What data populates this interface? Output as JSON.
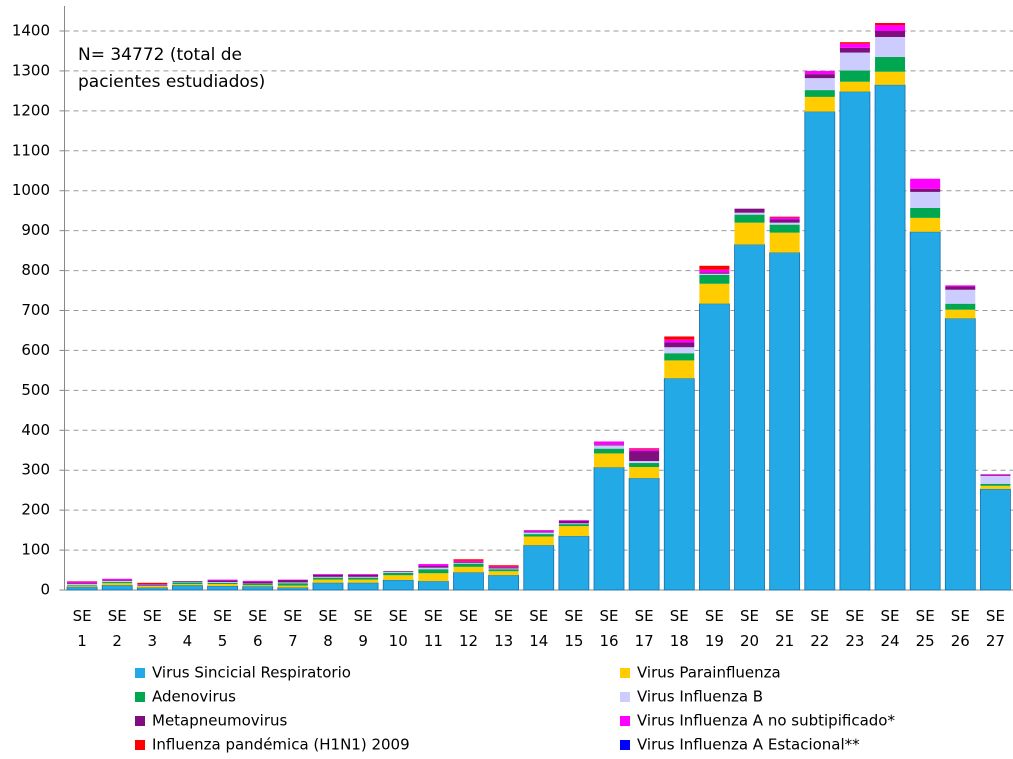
{
  "chart_data": {
    "type": "stacked-bar",
    "annotation": "N= 34772 (total de pacientes estudiados)",
    "categories": [
      "SE 1",
      "SE 2",
      "SE 3",
      "SE 4",
      "SE 5",
      "SE 6",
      "SE 7",
      "SE 8",
      "SE 9",
      "SE 10",
      "SE 11",
      "SE 12",
      "SE 13",
      "SE 14",
      "SE 15",
      "SE 16",
      "SE 17",
      "SE 18",
      "SE 19",
      "SE 20",
      "SE 21",
      "SE 22",
      "SE 23",
      "SE 24",
      "SE 25",
      "SE 26",
      "SE 27"
    ],
    "series": [
      {
        "name": "Virus Sincicial Respiratorio",
        "color": "#22a9e6",
        "values": [
          8,
          12,
          6,
          12,
          10,
          9,
          6,
          18,
          18,
          25,
          22,
          44,
          37,
          112,
          135,
          307,
          280,
          530,
          717,
          865,
          845,
          1198,
          1248,
          1265,
          897,
          680,
          253
        ]
      },
      {
        "name": "Virus Parainfluenza",
        "color": "#ffcc00",
        "values": [
          3,
          5,
          4,
          3,
          5,
          3,
          5,
          8,
          8,
          12,
          20,
          14,
          10,
          22,
          25,
          35,
          28,
          45,
          50,
          55,
          50,
          37,
          25,
          33,
          35,
          22,
          8
        ]
      },
      {
        "name": "Adenovirus",
        "color": "#00a650",
        "values": [
          2,
          3,
          2,
          4,
          3,
          3,
          6,
          5,
          5,
          6,
          10,
          8,
          5,
          6,
          5,
          12,
          10,
          18,
          22,
          20,
          20,
          17,
          28,
          37,
          25,
          15,
          5
        ]
      },
      {
        "name": "Virus Influenza B",
        "color": "#ccccff",
        "values": [
          2,
          3,
          0,
          1,
          2,
          1,
          2,
          2,
          2,
          2,
          4,
          2,
          2,
          4,
          2,
          8,
          5,
          15,
          3,
          5,
          5,
          30,
          45,
          50,
          40,
          35,
          20
        ]
      },
      {
        "name": "Metapneumovirus",
        "color": "#7f0f7e",
        "values": [
          2,
          2,
          1,
          2,
          4,
          5,
          6,
          5,
          5,
          2,
          4,
          2,
          3,
          3,
          6,
          2,
          25,
          12,
          3,
          10,
          8,
          10,
          12,
          15,
          8,
          8,
          2
        ]
      },
      {
        "name": "Virus Influenza A no subtipificado*",
        "color": "#ff00ff",
        "values": [
          4,
          3,
          2,
          0,
          2,
          2,
          1,
          2,
          2,
          0,
          5,
          3,
          2,
          3,
          2,
          8,
          5,
          7,
          7,
          0,
          5,
          8,
          10,
          15,
          25,
          3,
          2
        ]
      },
      {
        "name": "Influenza pandémica (H1N1) 2009",
        "color": "#ff0000",
        "values": [
          1,
          0,
          3,
          0,
          0,
          0,
          0,
          0,
          0,
          0,
          0,
          4,
          3,
          0,
          0,
          0,
          2,
          8,
          10,
          0,
          2,
          0,
          4,
          5,
          0,
          0,
          0
        ]
      },
      {
        "name": "Virus Influenza A Estacional**",
        "color": "#0000ff",
        "values": [
          0,
          0,
          0,
          0,
          0,
          0,
          0,
          0,
          0,
          0,
          0,
          0,
          0,
          0,
          0,
          0,
          0,
          0,
          0,
          0,
          0,
          0,
          0,
          0,
          0,
          0,
          0
        ]
      }
    ],
    "ylim": [
      0,
      1400
    ],
    "yticks": [
      0,
      100,
      200,
      300,
      400,
      500,
      600,
      700,
      800,
      900,
      1000,
      1100,
      1200,
      1300,
      1400
    ],
    "grid": true
  }
}
